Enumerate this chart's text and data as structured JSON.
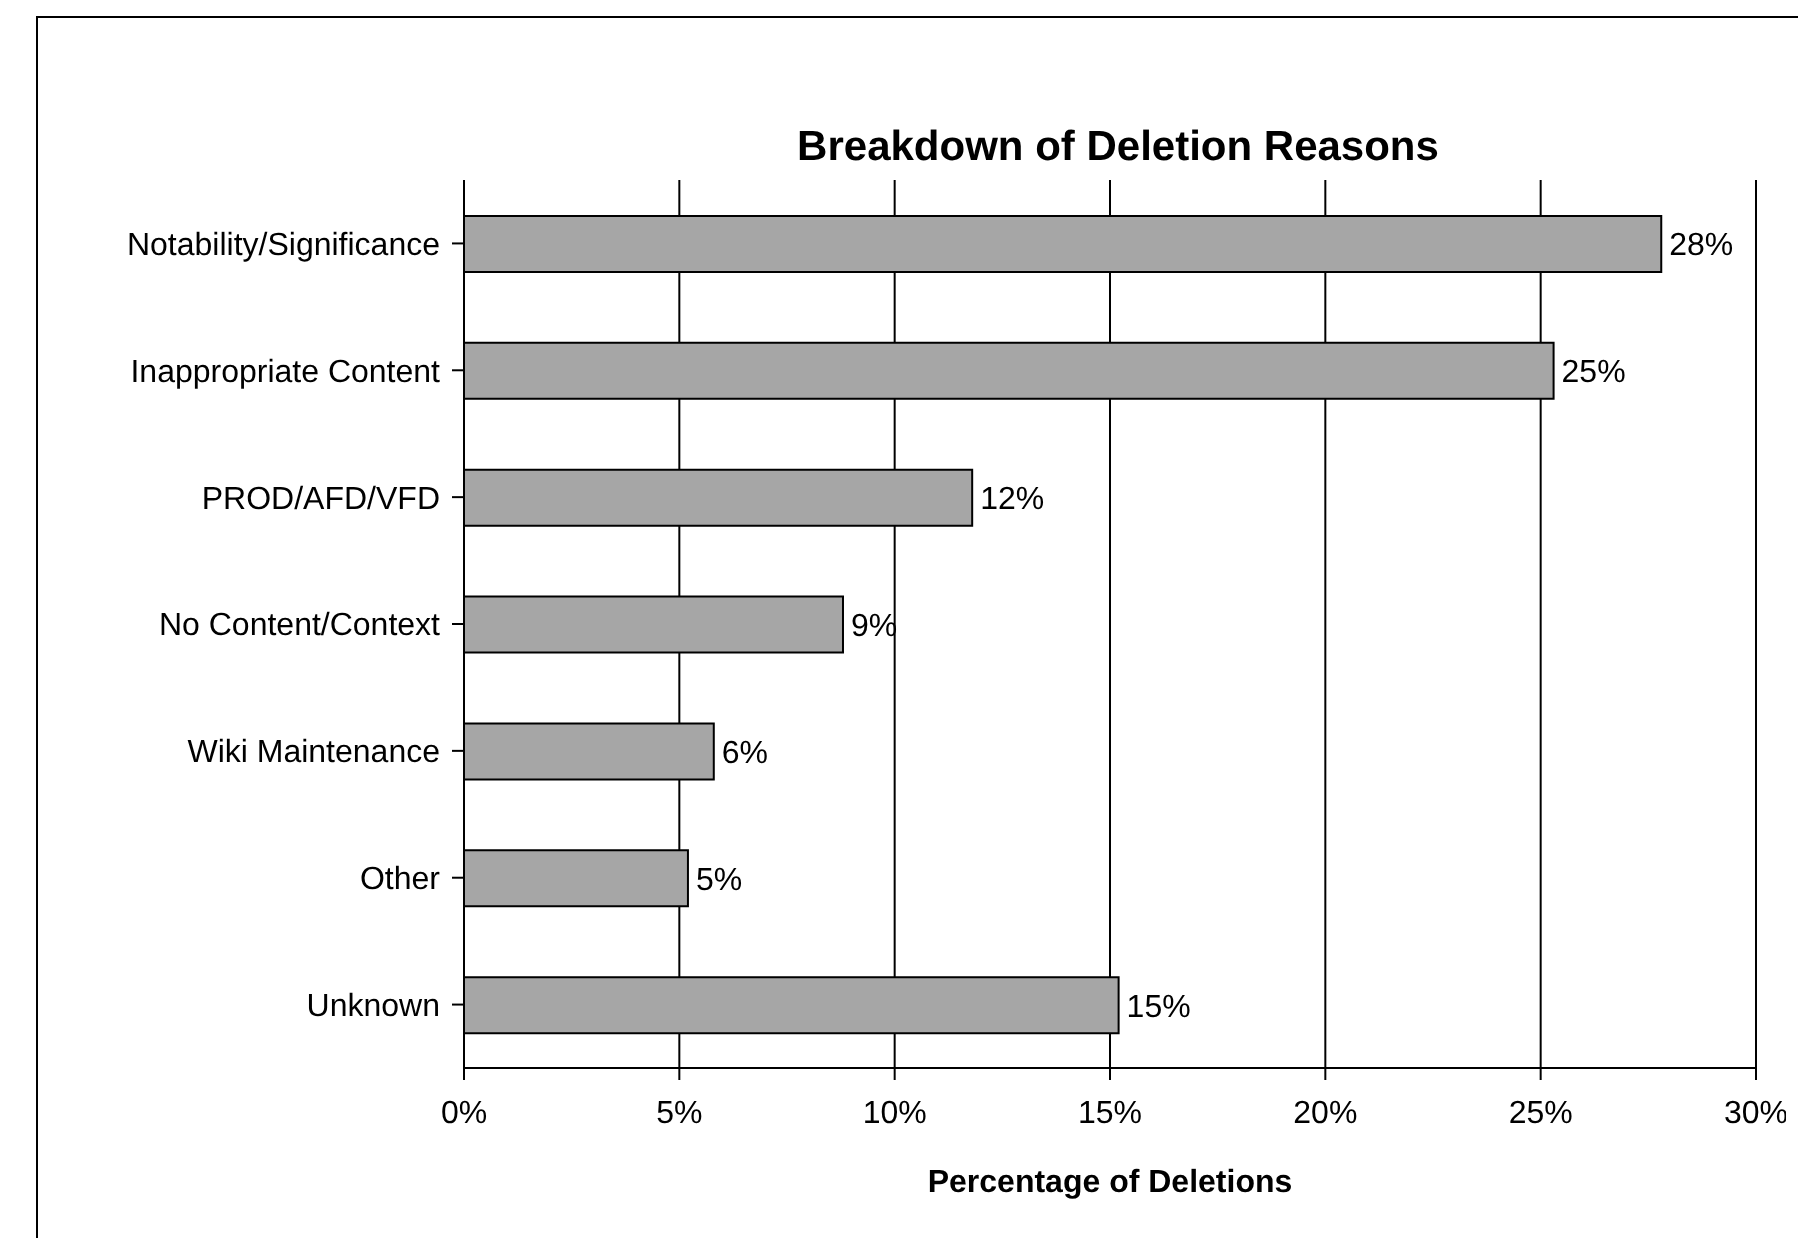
{
  "chart_data": {
    "type": "bar",
    "orientation": "horizontal",
    "title": "Breakdown of Deletion Reasons",
    "xlabel": "Percentage of Deletions",
    "categories": [
      "Notability/Significance",
      "Inappropriate Content",
      "PROD/AFD/VFD",
      "No Content/Context",
      "Wiki Maintenance",
      "Other",
      "Unknown"
    ],
    "values": [
      27.8,
      25.3,
      11.8,
      8.8,
      5.8,
      5.2,
      15.2
    ],
    "value_labels": [
      "28%",
      "25%",
      "12%",
      "9%",
      "6%",
      "5%",
      "15%"
    ],
    "color": "#a6a6a6",
    "xlim": [
      0,
      30
    ],
    "xticks": [
      {
        "value": 0,
        "label": "0%"
      },
      {
        "value": 5,
        "label": "5%"
      },
      {
        "value": 10,
        "label": "10%"
      },
      {
        "value": 15,
        "label": "15%"
      },
      {
        "value": 20,
        "label": "20%"
      },
      {
        "value": 25,
        "label": "25%"
      },
      {
        "value": 30,
        "label": "30%"
      }
    ],
    "grid": "x"
  }
}
